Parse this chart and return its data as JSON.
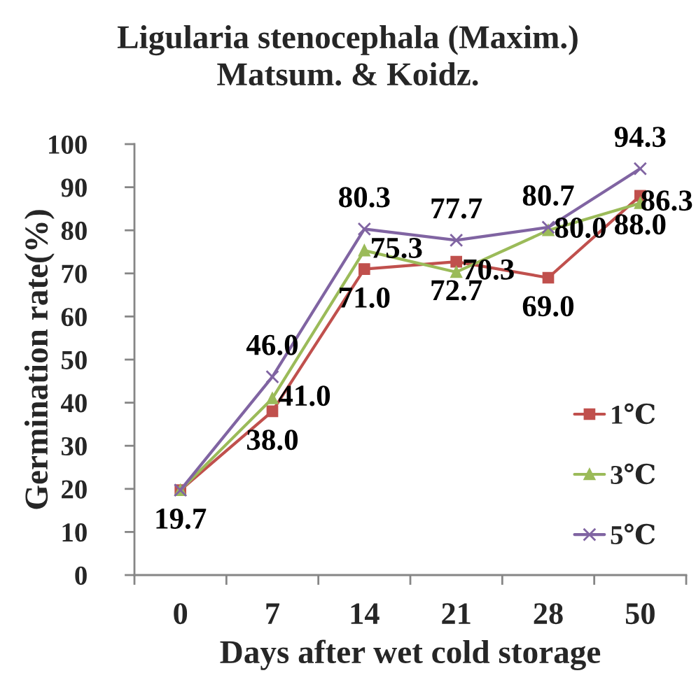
{
  "chart_data": {
    "type": "line",
    "title": "Ligularia stenocephala (Maxim.)\nMatsum. & Koidz.",
    "xlabel": "Days after wet cold storage",
    "ylabel": "Germination rate(%)",
    "categories": [
      "0",
      "7",
      "14",
      "21",
      "28",
      "50"
    ],
    "series": [
      {
        "name": "1℃",
        "color": "#c0504d",
        "marker": "square",
        "values": [
          19.7,
          38.0,
          71.0,
          72.7,
          69.0,
          88.0
        ],
        "value_labels": [
          "19.7",
          "38.0",
          "71.0",
          "72.7",
          "69.0",
          "88.0"
        ]
      },
      {
        "name": "3℃",
        "color": "#9bbb59",
        "marker": "triangle",
        "values": [
          19.7,
          41.0,
          75.3,
          70.3,
          80.0,
          86.3
        ],
        "value_labels": [
          null,
          "41.0",
          "75.3",
          "70.3",
          "80.0",
          "86.3"
        ]
      },
      {
        "name": "5℃",
        "color": "#8064a2",
        "marker": "cross",
        "values": [
          19.7,
          46.0,
          80.3,
          77.7,
          80.7,
          94.3
        ],
        "value_labels": [
          null,
          "46.0",
          "80.3",
          "77.7",
          "80.7",
          "94.3"
        ]
      }
    ],
    "ylim": [
      0,
      100
    ],
    "yticks": [
      0,
      10,
      20,
      30,
      40,
      50,
      60,
      70,
      80,
      90,
      100
    ],
    "grid": false,
    "legend": "right",
    "line_style": "solid"
  }
}
